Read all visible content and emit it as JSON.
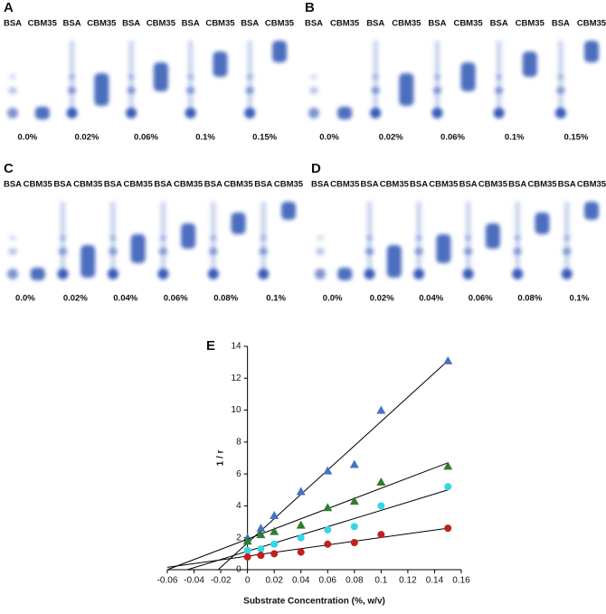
{
  "panels": [
    {
      "label": "A",
      "lanes": [
        "BSA",
        "CBM35",
        "BSA",
        "CBM35",
        "BSA",
        "CBM35",
        "BSA",
        "CBM35",
        "BSA",
        "CBM35"
      ],
      "concentrations": [
        "0.0%",
        "0.02%",
        "0.06%",
        "0.1%",
        "0.15%"
      ]
    },
    {
      "label": "B",
      "lanes": [
        "BSA",
        "CBM35",
        "BSA",
        "CBM35",
        "BSA",
        "CBM35",
        "BSA",
        "CBM35",
        "BSA",
        "CBM35"
      ],
      "concentrations": [
        "0.0%",
        "0.02%",
        "0.06%",
        "0.1%",
        "0.15%"
      ]
    },
    {
      "label": "C",
      "lanes": [
        "BSA",
        "CBM35",
        "BSA",
        "CBM35",
        "BSA",
        "CBM35",
        "BSA",
        "CBM35",
        "BSA",
        "CBM35",
        "BSA",
        "CBM35"
      ],
      "concentrations": [
        "0.0%",
        "0.02%",
        "0.04%",
        "0.06%",
        "0.08%",
        "0.1%"
      ]
    },
    {
      "label": "D",
      "lanes": [
        "BSA",
        "CBM35",
        "BSA",
        "CBM35",
        "BSA",
        "CBM35",
        "BSA",
        "CBM35",
        "BSA",
        "CBM35",
        "BSA",
        "CBM35"
      ],
      "concentrations": [
        "0.0%",
        "0.02%",
        "0.04%",
        "0.06%",
        "0.08%",
        "0.1%"
      ]
    }
  ],
  "chart_data": {
    "type": "scatter",
    "label": "E",
    "x_label": "Substrate Concentration (%, w/v)",
    "y_label": "1 / r",
    "x": [
      0,
      0.01,
      0.02,
      0.04,
      0.06,
      0.08,
      0.1,
      0.15
    ],
    "xlim": [
      -0.06,
      0.16
    ],
    "xticks": [
      -0.06,
      -0.04,
      -0.02,
      0,
      0.02,
      0.04,
      0.06,
      0.08,
      0.1,
      0.12,
      0.14,
      0.16
    ],
    "ylim": [
      0,
      14
    ],
    "yticks": [
      0,
      2,
      4,
      6,
      8,
      10,
      12,
      14
    ],
    "series": [
      {
        "color": "#4472c4",
        "marker": "triangle",
        "values": [
          2.0,
          2.6,
          3.4,
          4.9,
          6.2,
          6.6,
          10.0,
          13.1
        ],
        "line_x": [
          -0.022,
          0.15
        ],
        "line_y": [
          0,
          13.1
        ]
      },
      {
        "color": "#2e7d32",
        "marker": "triangle",
        "values": [
          1.8,
          2.2,
          2.4,
          2.8,
          3.9,
          4.3,
          5.5,
          6.5
        ],
        "line_x": [
          -0.06,
          0.15
        ],
        "line_y": [
          0,
          6.7
        ]
      },
      {
        "color": "#33d6e6",
        "marker": "circle",
        "values": [
          1.2,
          1.3,
          1.6,
          2.0,
          2.5,
          2.7,
          4.0,
          5.2
        ],
        "line_x": [
          -0.045,
          0.15
        ],
        "line_y": [
          0,
          5.0
        ]
      },
      {
        "color": "#c0201e",
        "marker": "circle",
        "values": [
          0.8,
          0.9,
          1.0,
          1.1,
          1.6,
          1.7,
          2.2,
          2.6
        ],
        "line_x": [
          -0.06,
          0.15
        ],
        "line_y": [
          0.15,
          2.6
        ]
      }
    ]
  }
}
